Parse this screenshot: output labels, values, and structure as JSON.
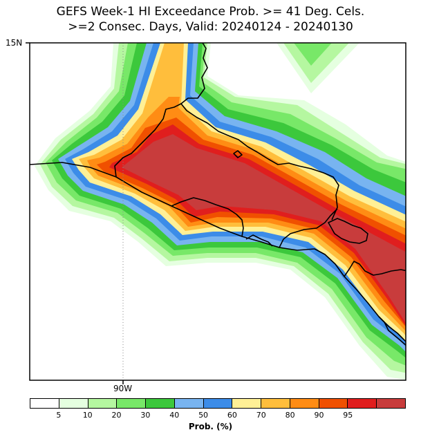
{
  "title_line1": "GEFS Week-1 HI Exceedance Prob. >= 41 Deg. Cels.",
  "title_line2": ">=2 Consec. Days, Valid: 20240124 - 20240130",
  "axes": {
    "lat_label": "15N",
    "lon_label": "90W",
    "gridline_style": "dotted"
  },
  "legend": {
    "title": "Prob. (%)",
    "labels": [
      "5",
      "10",
      "20",
      "30",
      "40",
      "50",
      "60",
      "70",
      "80",
      "90",
      "95"
    ],
    "colors": [
      "#ffffff",
      "#e5ffe0",
      "#b5f7a0",
      "#78e868",
      "#3cc83c",
      "#78b4f0",
      "#3c8ce8",
      "#fff096",
      "#ffbe3c",
      "#ff8c14",
      "#f05000",
      "#e01e1e",
      "#c83c3c"
    ]
  },
  "colors": {
    "coastline": "#000000",
    "frame": "#000000",
    "background": "#ffffff"
  }
}
